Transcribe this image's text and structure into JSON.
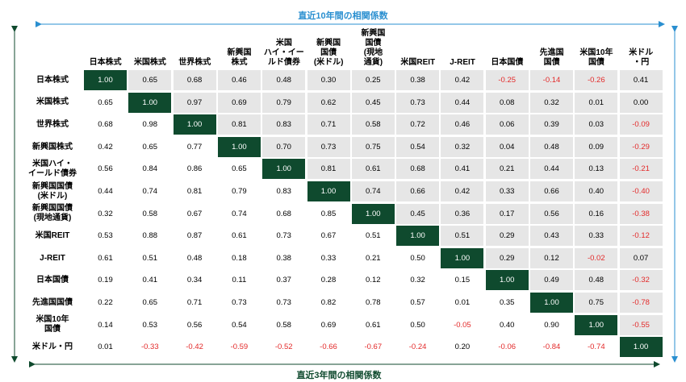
{
  "chart_data": {
    "type": "heatmap",
    "top_caption": "直近10年間の相関係数",
    "bottom_caption": "直近3年間の相関係数",
    "col_labels": [
      "日本株式",
      "米国株式",
      "世界株式",
      "新興国\n株式",
      "米国\nハイ・イー\nルド債券",
      "新興国\n国債\n(米ドル)",
      "新興国\n国債\n(現地\n通貨)",
      "米国REIT",
      "J-REIT",
      "日本国債",
      "先進国\n国債",
      "米国10年\n国債",
      "米ドル\n・円"
    ],
    "row_labels": [
      "日本株式",
      "米国株式",
      "世界株式",
      "新興国株式",
      "米国ハイ・\nイールド債券",
      "新興国国債\n(米ドル)",
      "新興国国債\n(現地通貨)",
      "米国REIT",
      "J-REIT",
      "日本国債",
      "先進国国債",
      "米国10年\n国債",
      "米ドル・円"
    ],
    "matrix": [
      [
        "1.00",
        "0.65",
        "0.68",
        "0.46",
        "0.48",
        "0.30",
        "0.25",
        "0.38",
        "0.42",
        "-0.25",
        "-0.14",
        "-0.26",
        "0.41"
      ],
      [
        "0.65",
        "1.00",
        "0.97",
        "0.69",
        "0.79",
        "0.62",
        "0.45",
        "0.73",
        "0.44",
        "0.08",
        "0.32",
        "0.01",
        "0.00"
      ],
      [
        "0.68",
        "0.98",
        "1.00",
        "0.81",
        "0.83",
        "0.71",
        "0.58",
        "0.72",
        "0.46",
        "0.06",
        "0.39",
        "0.03",
        "-0.09"
      ],
      [
        "0.42",
        "0.65",
        "0.77",
        "1.00",
        "0.70",
        "0.73",
        "0.75",
        "0.54",
        "0.32",
        "0.04",
        "0.48",
        "0.09",
        "-0.29"
      ],
      [
        "0.56",
        "0.84",
        "0.86",
        "0.65",
        "1.00",
        "0.81",
        "0.61",
        "0.68",
        "0.41",
        "0.21",
        "0.44",
        "0.13",
        "-0.21"
      ],
      [
        "0.44",
        "0.74",
        "0.81",
        "0.79",
        "0.83",
        "1.00",
        "0.74",
        "0.66",
        "0.42",
        "0.33",
        "0.66",
        "0.40",
        "-0.40"
      ],
      [
        "0.32",
        "0.58",
        "0.67",
        "0.74",
        "0.68",
        "0.85",
        "1.00",
        "0.45",
        "0.36",
        "0.17",
        "0.56",
        "0.16",
        "-0.38"
      ],
      [
        "0.53",
        "0.88",
        "0.87",
        "0.61",
        "0.73",
        "0.67",
        "0.51",
        "1.00",
        "0.51",
        "0.29",
        "0.43",
        "0.33",
        "-0.12"
      ],
      [
        "0.61",
        "0.51",
        "0.48",
        "0.18",
        "0.38",
        "0.33",
        "0.21",
        "0.50",
        "1.00",
        "0.29",
        "0.12",
        "-0.02",
        "0.07"
      ],
      [
        "0.19",
        "0.41",
        "0.34",
        "0.11",
        "0.37",
        "0.28",
        "0.12",
        "0.32",
        "0.15",
        "1.00",
        "0.49",
        "0.48",
        "-0.32"
      ],
      [
        "0.22",
        "0.65",
        "0.71",
        "0.73",
        "0.73",
        "0.82",
        "0.78",
        "0.57",
        "0.01",
        "0.35",
        "1.00",
        "0.75",
        "-0.78"
      ],
      [
        "0.14",
        "0.53",
        "0.56",
        "0.54",
        "0.58",
        "0.69",
        "0.61",
        "0.50",
        "-0.05",
        "0.40",
        "0.90",
        "1.00",
        "-0.55"
      ],
      [
        "0.01",
        "-0.33",
        "-0.42",
        "-0.59",
        "-0.52",
        "-0.66",
        "-0.67",
        "-0.24",
        "0.20",
        "-0.06",
        "-0.84",
        "-0.74",
        "1.00"
      ]
    ],
    "colors": {
      "diagonal": "#0f4a2e",
      "upper_shade": "#e6e6e6",
      "negative": "#e32a2a",
      "caption": "#2a8fd0",
      "arrow": "#2a8fd0",
      "left_arrow": "#0f4a2e"
    }
  }
}
